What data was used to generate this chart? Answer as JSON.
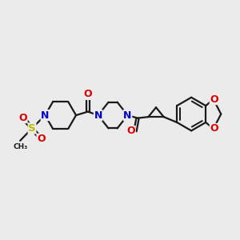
{
  "bg_color": "#ebebeb",
  "bond_color": "#1a1a1a",
  "N_color": "#0000cc",
  "O_color": "#dd0000",
  "S_color": "#bbbb00",
  "lw": 1.6,
  "lw_double": 1.4,
  "fig_width": 3.0,
  "fig_height": 3.0,
  "dpi": 100,
  "xlim": [
    0,
    10
  ],
  "ylim": [
    0,
    10
  ]
}
